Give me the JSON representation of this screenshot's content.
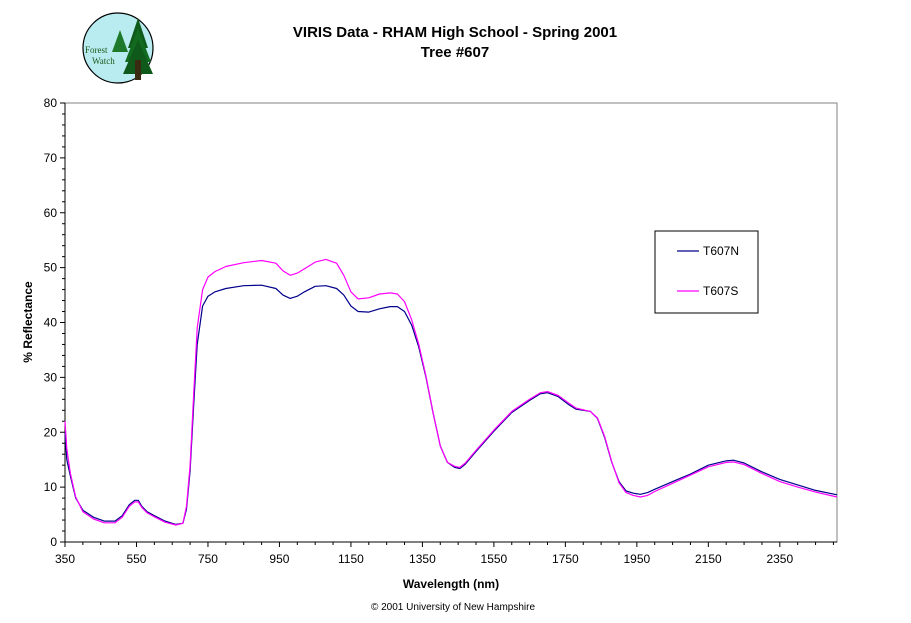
{
  "logo": {
    "text_line1": "Forest",
    "text_line2": "Watch"
  },
  "footer": {
    "copyright": "© 2001 University of New Hampshire"
  },
  "chart_data": {
    "type": "line",
    "title": "VIRIS Data - RHAM High School - Spring 2001",
    "subtitle": "Tree #607",
    "xlabel": "Wavelength (nm)",
    "ylabel": "% Reflectance",
    "xlim": [
      350,
      2510
    ],
    "ylim": [
      0,
      80
    ],
    "xticks": [
      350,
      550,
      750,
      950,
      1150,
      1350,
      1550,
      1750,
      1950,
      2150,
      2350
    ],
    "yticks": [
      0,
      10,
      20,
      30,
      40,
      50,
      60,
      70,
      80
    ],
    "grid": false,
    "legend_position": "right",
    "series": [
      {
        "name": "T607N",
        "color": "#00008b",
        "x": [
          350,
          355,
          365,
          380,
          400,
          430,
          460,
          490,
          510,
          530,
          545,
          555,
          565,
          580,
          600,
          630,
          660,
          680,
          690,
          700,
          710,
          720,
          735,
          750,
          770,
          800,
          850,
          900,
          940,
          960,
          980,
          1000,
          1020,
          1050,
          1080,
          1110,
          1130,
          1150,
          1170,
          1200,
          1230,
          1260,
          1280,
          1300,
          1320,
          1340,
          1360,
          1380,
          1400,
          1420,
          1440,
          1455,
          1470,
          1500,
          1550,
          1600,
          1650,
          1680,
          1700,
          1730,
          1760,
          1780,
          1800,
          1820,
          1840,
          1860,
          1880,
          1900,
          1920,
          1940,
          1960,
          1980,
          2000,
          2050,
          2100,
          2150,
          2200,
          2220,
          2250,
          2300,
          2350,
          2400,
          2450,
          2510
        ],
        "y": [
          20,
          15,
          12,
          8,
          5.8,
          4.5,
          3.8,
          3.8,
          4.8,
          6.8,
          7.6,
          7.6,
          6.5,
          5.5,
          4.8,
          3.8,
          3.2,
          3.4,
          6,
          13,
          25,
          36,
          43,
          44.8,
          45.6,
          46.2,
          46.7,
          46.8,
          46.2,
          45,
          44.4,
          44.8,
          45.6,
          46.6,
          46.7,
          46.2,
          45,
          43,
          42,
          41.9,
          42.5,
          42.9,
          42.9,
          42,
          39.5,
          35.5,
          30,
          23.5,
          17.5,
          14.5,
          13.6,
          13.4,
          14.2,
          16.5,
          20.2,
          23.6,
          25.8,
          27,
          27.2,
          26.5,
          25,
          24.2,
          24,
          23.8,
          22.5,
          19,
          14.5,
          11,
          9.3,
          8.9,
          8.7,
          9,
          9.6,
          11,
          12.4,
          14,
          14.8,
          14.9,
          14.4,
          12.8,
          11.4,
          10.4,
          9.4,
          8.6
        ]
      },
      {
        "name": "T607S",
        "color": "#ff00ff",
        "x": [
          350,
          355,
          365,
          380,
          400,
          430,
          460,
          490,
          510,
          530,
          545,
          555,
          565,
          580,
          600,
          630,
          660,
          680,
          690,
          700,
          710,
          720,
          735,
          750,
          770,
          800,
          850,
          900,
          940,
          960,
          980,
          1000,
          1020,
          1050,
          1080,
          1110,
          1130,
          1150,
          1170,
          1200,
          1230,
          1260,
          1280,
          1300,
          1320,
          1340,
          1360,
          1380,
          1400,
          1420,
          1440,
          1455,
          1470,
          1500,
          1550,
          1600,
          1650,
          1680,
          1700,
          1730,
          1760,
          1780,
          1800,
          1820,
          1840,
          1860,
          1880,
          1900,
          1920,
          1940,
          1960,
          1980,
          2000,
          2050,
          2100,
          2150,
          2200,
          2220,
          2250,
          2300,
          2350,
          2400,
          2450,
          2510
        ],
        "y": [
          22,
          17,
          12.5,
          8.2,
          5.5,
          4.2,
          3.5,
          3.5,
          4.5,
          6.5,
          7.3,
          7.3,
          6.3,
          5.3,
          4.6,
          3.6,
          3.1,
          3.4,
          6.5,
          14,
          27,
          39,
          46,
          48.3,
          49.3,
          50.2,
          50.9,
          51.3,
          50.8,
          49.4,
          48.6,
          49,
          49.8,
          51,
          51.5,
          50.8,
          48.6,
          45.6,
          44.3,
          44.5,
          45.2,
          45.4,
          45.2,
          43.8,
          40.5,
          36,
          30.2,
          23.5,
          17.5,
          14.5,
          13.8,
          13.6,
          14.4,
          16.7,
          20.4,
          23.8,
          26,
          27.2,
          27.4,
          26.7,
          25.3,
          24.4,
          24.1,
          23.8,
          22.6,
          19.2,
          14.6,
          10.8,
          9,
          8.5,
          8.2,
          8.5,
          9.2,
          10.7,
          12.2,
          13.7,
          14.5,
          14.6,
          14.1,
          12.5,
          11,
          10,
          9.1,
          8.2
        ]
      }
    ]
  }
}
